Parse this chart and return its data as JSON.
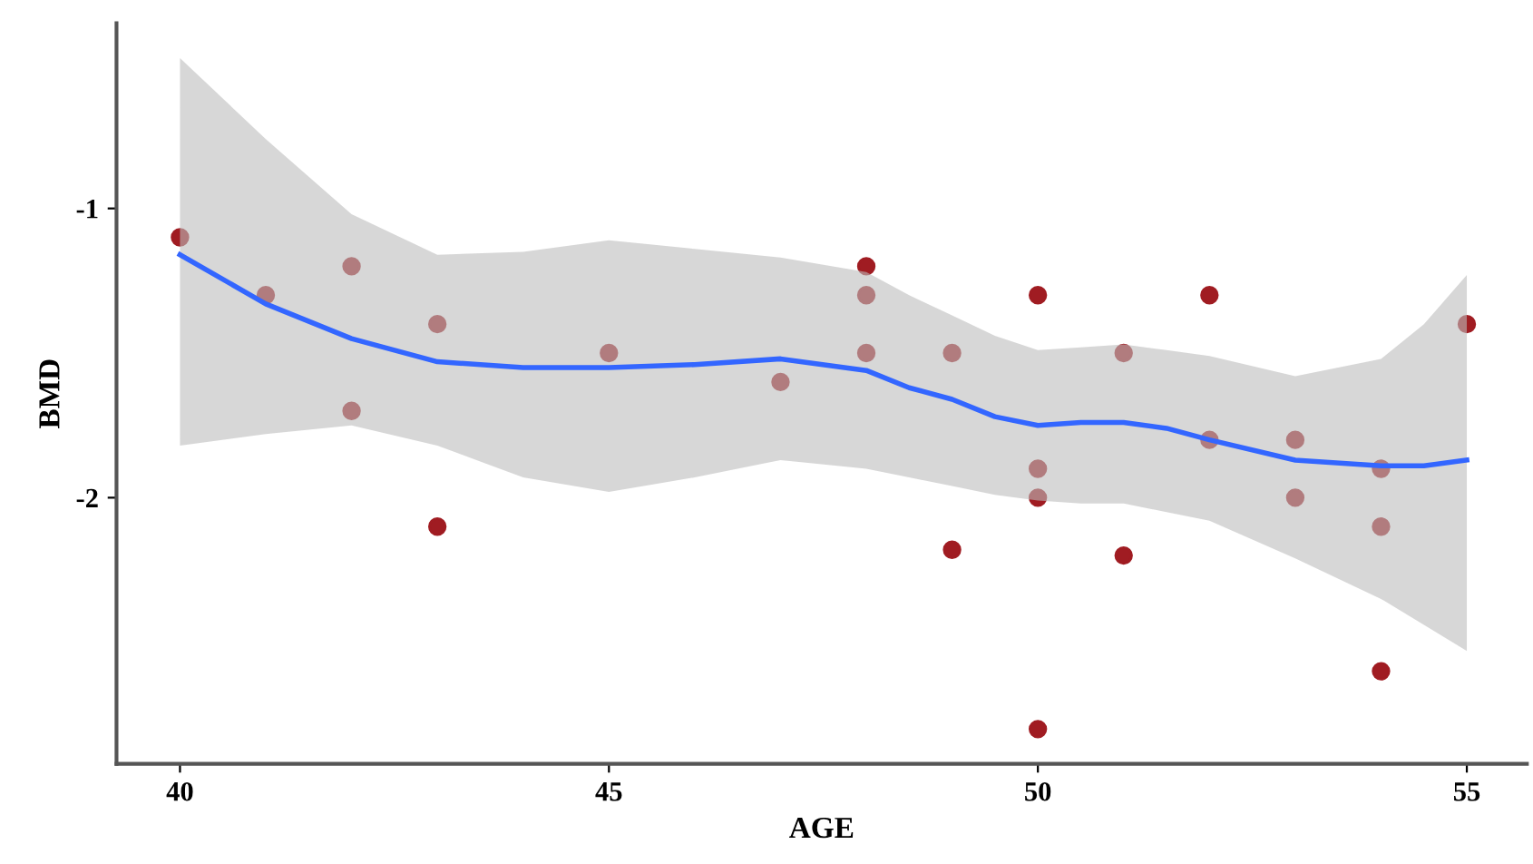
{
  "chart_data": {
    "type": "scatter",
    "xlabel": "AGE",
    "ylabel": "BMD",
    "xlim": [
      39.26,
      55.7
    ],
    "ylim": [
      -2.92,
      -0.36
    ],
    "xticks": [
      40,
      45,
      50,
      55
    ],
    "yticks": [
      -1,
      -2
    ],
    "grid": false,
    "legend": false,
    "marker": "circle",
    "series": [
      {
        "color": "#a01c22",
        "x": [
          40,
          41,
          42,
          42,
          43,
          43,
          45,
          47,
          48,
          48,
          48,
          49,
          49,
          50,
          50,
          50,
          50,
          51,
          51,
          52,
          52,
          53,
          53,
          54,
          54,
          54,
          55
        ],
        "values": [
          -1.1,
          -1.3,
          -1.2,
          -1.7,
          -1.4,
          -2.1,
          -1.5,
          -1.6,
          -1.2,
          -1.3,
          -1.5,
          -1.5,
          -2.18,
          -1.3,
          -1.9,
          -2.0,
          -2.8,
          -1.5,
          -2.2,
          -1.3,
          -1.8,
          -1.8,
          -2.0,
          -1.9,
          -2.1,
          -2.6,
          -1.4
        ]
      },
      {
        "type": "line",
        "color": "#3366ff",
        "line_style": "solid",
        "marker": "none",
        "x": [
          40,
          41,
          42,
          43,
          44,
          45,
          46,
          47,
          48,
          48.5,
          49,
          49.5,
          50,
          50.5,
          51,
          51.5,
          52,
          53,
          54,
          54.5,
          55
        ],
        "values": [
          -1.16,
          -1.33,
          -1.45,
          -1.53,
          -1.55,
          -1.55,
          -1.54,
          -1.52,
          -1.56,
          -1.62,
          -1.66,
          -1.72,
          -1.75,
          -1.74,
          -1.74,
          -1.76,
          -1.8,
          -1.87,
          -1.89,
          -1.89,
          -1.87
        ],
        "lower": [
          -1.82,
          -1.78,
          -1.75,
          -1.82,
          -1.93,
          -1.98,
          -1.93,
          -1.87,
          -1.9,
          -1.93,
          -1.96,
          -1.99,
          -2.01,
          -2.02,
          -2.02,
          -2.05,
          -2.08,
          -2.21,
          -2.35,
          -2.44,
          -2.53
        ],
        "upper": [
          -0.48,
          -0.76,
          -1.02,
          -1.16,
          -1.15,
          -1.11,
          -1.14,
          -1.17,
          -1.22,
          -1.3,
          -1.37,
          -1.44,
          -1.49,
          -1.48,
          -1.47,
          -1.49,
          -1.51,
          -1.58,
          -1.52,
          -1.4,
          -1.23
        ]
      }
    ]
  }
}
